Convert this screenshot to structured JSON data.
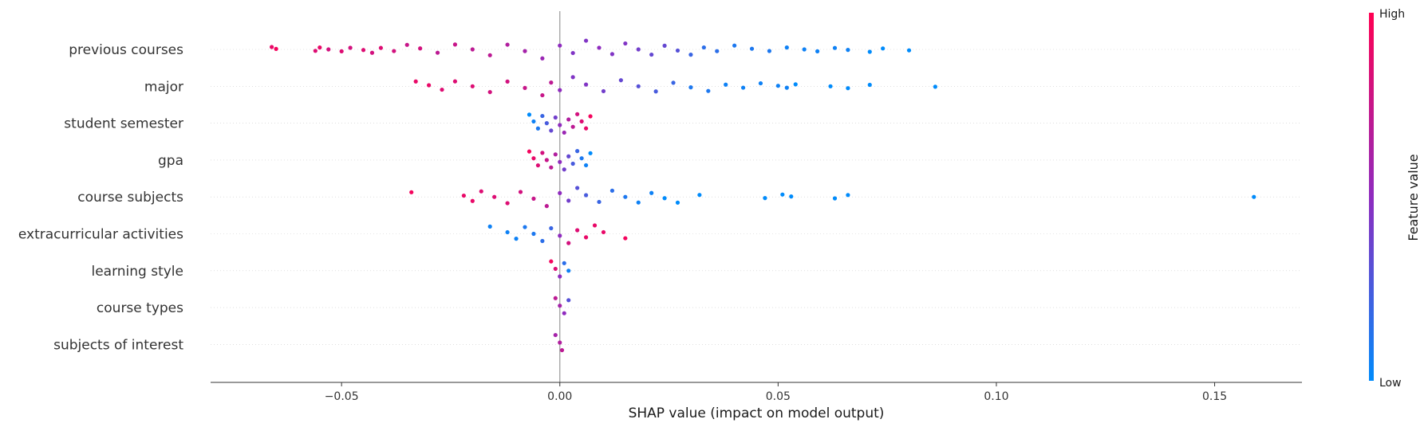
{
  "chart_data": {
    "type": "scatter",
    "subtype": "shap-beeswarm",
    "xlabel": "SHAP value (impact on model output)",
    "xlim": [
      -0.08,
      0.17
    ],
    "xticks": [
      -0.05,
      0.0,
      0.05,
      0.1,
      0.15
    ],
    "xtick_labels": [
      "−0.05",
      "0.00",
      "0.05",
      "0.10",
      "0.15"
    ],
    "colorbar": {
      "title": "Feature value",
      "high_label": "High",
      "low_label": "Low",
      "low_color": "#008bfb",
      "high_color": "#ff0052",
      "mid_color": "#8f2bbf"
    },
    "grid": false,
    "features": [
      {
        "name": "previous courses",
        "points": [
          [
            -0.066,
            0.9
          ],
          [
            -0.065,
            0.95
          ],
          [
            -0.056,
            0.85
          ],
          [
            -0.055,
            0.9
          ],
          [
            -0.053,
            0.8
          ],
          [
            -0.05,
            0.85
          ],
          [
            -0.048,
            0.8
          ],
          [
            -0.045,
            0.85
          ],
          [
            -0.043,
            0.8
          ],
          [
            -0.041,
            0.85
          ],
          [
            -0.038,
            0.8
          ],
          [
            -0.035,
            0.75
          ],
          [
            -0.032,
            0.8
          ],
          [
            -0.028,
            0.7
          ],
          [
            -0.024,
            0.75
          ],
          [
            -0.02,
            0.7
          ],
          [
            -0.016,
            0.7
          ],
          [
            -0.012,
            0.65
          ],
          [
            -0.008,
            0.6
          ],
          [
            -0.004,
            0.55
          ],
          [
            0.0,
            0.5
          ],
          [
            0.003,
            0.45
          ],
          [
            0.006,
            0.45
          ],
          [
            0.009,
            0.5
          ],
          [
            0.012,
            0.45
          ],
          [
            0.015,
            0.45
          ],
          [
            0.018,
            0.4
          ],
          [
            0.021,
            0.35
          ],
          [
            0.024,
            0.35
          ],
          [
            0.027,
            0.3
          ],
          [
            0.03,
            0.2
          ],
          [
            0.033,
            0.15
          ],
          [
            0.036,
            0.15
          ],
          [
            0.04,
            0.1
          ],
          [
            0.044,
            0.1
          ],
          [
            0.048,
            0.1
          ],
          [
            0.052,
            0.05
          ],
          [
            0.056,
            0.05
          ],
          [
            0.059,
            0.05
          ],
          [
            0.063,
            0.05
          ],
          [
            0.066,
            0.05
          ],
          [
            0.071,
            0.0
          ],
          [
            0.074,
            0.0
          ],
          [
            0.08,
            0.0
          ]
        ]
      },
      {
        "name": "major",
        "points": [
          [
            -0.033,
            0.9
          ],
          [
            -0.03,
            0.9
          ],
          [
            -0.027,
            0.85
          ],
          [
            -0.024,
            0.85
          ],
          [
            -0.02,
            0.85
          ],
          [
            -0.016,
            0.8
          ],
          [
            -0.012,
            0.8
          ],
          [
            -0.008,
            0.75
          ],
          [
            -0.004,
            0.75
          ],
          [
            -0.002,
            0.7
          ],
          [
            0.0,
            0.5
          ],
          [
            0.003,
            0.45
          ],
          [
            0.006,
            0.45
          ],
          [
            0.01,
            0.4
          ],
          [
            0.014,
            0.35
          ],
          [
            0.018,
            0.3
          ],
          [
            0.022,
            0.25
          ],
          [
            0.026,
            0.2
          ],
          [
            0.03,
            0.1
          ],
          [
            0.034,
            0.1
          ],
          [
            0.038,
            0.05
          ],
          [
            0.042,
            0.05
          ],
          [
            0.046,
            0.05
          ],
          [
            0.05,
            0.05
          ],
          [
            0.052,
            0.05
          ],
          [
            0.054,
            0.0
          ],
          [
            0.062,
            0.0
          ],
          [
            0.066,
            0.0
          ],
          [
            0.071,
            0.0
          ],
          [
            0.086,
            0.0
          ]
        ]
      },
      {
        "name": "student semester",
        "points": [
          [
            -0.007,
            0.0
          ],
          [
            -0.006,
            0.05
          ],
          [
            -0.005,
            0.1
          ],
          [
            -0.004,
            0.2
          ],
          [
            -0.003,
            0.25
          ],
          [
            -0.002,
            0.35
          ],
          [
            -0.001,
            0.4
          ],
          [
            0.0,
            0.5
          ],
          [
            0.001,
            0.55
          ],
          [
            0.002,
            0.65
          ],
          [
            0.003,
            0.7
          ],
          [
            0.004,
            0.8
          ],
          [
            0.005,
            0.85
          ],
          [
            0.006,
            0.9
          ],
          [
            0.007,
            0.95
          ]
        ]
      },
      {
        "name": "gpa",
        "points": [
          [
            -0.007,
            0.95
          ],
          [
            -0.006,
            0.9
          ],
          [
            -0.005,
            0.85
          ],
          [
            -0.004,
            0.8
          ],
          [
            -0.003,
            0.75
          ],
          [
            -0.002,
            0.7
          ],
          [
            -0.001,
            0.65
          ],
          [
            0.0,
            0.5
          ],
          [
            0.001,
            0.4
          ],
          [
            0.002,
            0.35
          ],
          [
            0.003,
            0.25
          ],
          [
            0.004,
            0.2
          ],
          [
            0.005,
            0.1
          ],
          [
            0.006,
            0.05
          ],
          [
            0.007,
            0.0
          ]
        ]
      },
      {
        "name": "course subjects",
        "points": [
          [
            -0.034,
            0.95
          ],
          [
            -0.022,
            0.9
          ],
          [
            -0.02,
            0.9
          ],
          [
            -0.018,
            0.85
          ],
          [
            -0.015,
            0.85
          ],
          [
            -0.012,
            0.85
          ],
          [
            -0.009,
            0.8
          ],
          [
            -0.006,
            0.75
          ],
          [
            -0.003,
            0.7
          ],
          [
            0.0,
            0.5
          ],
          [
            0.002,
            0.4
          ],
          [
            0.004,
            0.3
          ],
          [
            0.006,
            0.25
          ],
          [
            0.009,
            0.2
          ],
          [
            0.012,
            0.15
          ],
          [
            0.015,
            0.1
          ],
          [
            0.018,
            0.05
          ],
          [
            0.021,
            0.05
          ],
          [
            0.024,
            0.0
          ],
          [
            0.027,
            0.0
          ],
          [
            0.032,
            0.0
          ],
          [
            0.047,
            0.0
          ],
          [
            0.051,
            0.0
          ],
          [
            0.053,
            0.0
          ],
          [
            0.063,
            0.0
          ],
          [
            0.066,
            0.0
          ],
          [
            0.159,
            0.0
          ]
        ]
      },
      {
        "name": "extracurricular activities",
        "points": [
          [
            -0.016,
            0.05
          ],
          [
            -0.012,
            0.05
          ],
          [
            -0.01,
            0.05
          ],
          [
            -0.008,
            0.1
          ],
          [
            -0.006,
            0.1
          ],
          [
            -0.004,
            0.15
          ],
          [
            -0.002,
            0.2
          ],
          [
            0.0,
            0.5
          ],
          [
            0.002,
            0.8
          ],
          [
            0.004,
            0.85
          ],
          [
            0.006,
            0.9
          ],
          [
            0.008,
            0.9
          ],
          [
            0.01,
            0.9
          ],
          [
            0.015,
            0.95
          ]
        ]
      },
      {
        "name": "learning style",
        "points": [
          [
            -0.002,
            0.95
          ],
          [
            -0.001,
            0.85
          ],
          [
            0.0,
            0.5
          ],
          [
            0.001,
            0.15
          ],
          [
            0.002,
            0.05
          ]
        ]
      },
      {
        "name": "course types",
        "points": [
          [
            -0.001,
            0.7
          ],
          [
            0.0,
            0.6
          ],
          [
            0.001,
            0.5
          ],
          [
            0.002,
            0.3
          ]
        ]
      },
      {
        "name": "subjects of interest",
        "points": [
          [
            -0.001,
            0.6
          ],
          [
            0.0,
            0.65
          ],
          [
            0.0005,
            0.7
          ]
        ]
      }
    ]
  }
}
